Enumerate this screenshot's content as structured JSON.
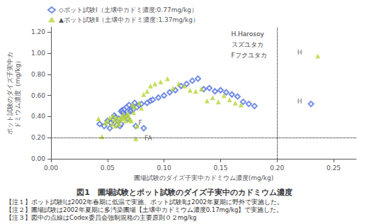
{
  "chart_data": {
    "type": "scatter",
    "title": "図1　圃場試験とポット試験のダイズ子実中のカドミウム濃度",
    "xlabel": "圃場試験のダイズ子実中カドミウム濃度(mg/kg)",
    "ylabel": "ポット試験のダイズ子実中カドミウム濃度（mg/kg）",
    "xlim": [
      0.0,
      0.27
    ],
    "ylim": [
      0.0,
      1.25
    ],
    "xticks": [
      {
        "value": 0.0,
        "label": "0.00"
      },
      0.05,
      {
        "value": 0.1,
        "label": "0.10"
      },
      0.15,
      {
        "value": 0.2,
        "label": "0.20"
      },
      0.25
    ],
    "yticks": [
      {
        "value": 0.0,
        "label": "0.00"
      },
      {
        "value": 0.2,
        "label": "0.20"
      },
      {
        "value": 0.4,
        "label": "0.40"
      },
      {
        "value": 0.6,
        "label": "0.60"
      },
      {
        "value": 0.8,
        "label": "0.80"
      },
      {
        "value": 1.0,
        "label": "1.00"
      },
      {
        "value": 1.2,
        "label": "1.20"
      }
    ],
    "grid": false,
    "legend": "upper left",
    "series": [
      {
        "name": "◇ポット試験Ⅰ（土壌中カドミ濃度:0.77mg/kg）",
        "marker": "open_diamond",
        "x": [
          0.043,
          0.047,
          0.05,
          0.052,
          0.053,
          0.055,
          0.056,
          0.057,
          0.058,
          0.059,
          0.06,
          0.061,
          0.062,
          0.062,
          0.063,
          0.064,
          0.065,
          0.065,
          0.066,
          0.067,
          0.068,
          0.069,
          0.07,
          0.071,
          0.072,
          0.073,
          0.074,
          0.075,
          0.076,
          0.078,
          0.08,
          0.082,
          0.085,
          0.088,
          0.09,
          0.095,
          0.1,
          0.105,
          0.11,
          0.115,
          0.12,
          0.125,
          0.13,
          0.135,
          0.14,
          0.145,
          0.15,
          0.155,
          0.16,
          0.165,
          0.17,
          0.175,
          0.18,
          0.23
        ],
        "values": [
          0.33,
          0.31,
          0.36,
          0.29,
          0.34,
          0.37,
          0.41,
          0.39,
          0.32,
          0.36,
          0.38,
          0.31,
          0.45,
          0.33,
          0.46,
          0.44,
          0.42,
          0.47,
          0.4,
          0.49,
          0.38,
          0.51,
          0.45,
          0.46,
          0.48,
          0.47,
          0.53,
          0.31,
          0.49,
          0.51,
          0.52,
          0.29,
          0.53,
          0.55,
          0.56,
          0.58,
          0.6,
          0.63,
          0.65,
          0.69,
          0.71,
          0.74,
          0.76,
          0.66,
          0.67,
          0.64,
          0.65,
          0.63,
          0.61,
          0.59,
          0.54,
          0.52,
          0.5,
          0.52
        ]
      },
      {
        "name": "▲ポット試験Ⅱ（土壌中カドミ濃度:1.37mg/kg）",
        "marker": "triangle",
        "x": [
          0.042,
          0.045,
          0.048,
          0.05,
          0.052,
          0.054,
          0.055,
          0.056,
          0.057,
          0.058,
          0.059,
          0.06,
          0.061,
          0.062,
          0.063,
          0.064,
          0.065,
          0.066,
          0.067,
          0.068,
          0.069,
          0.07,
          0.071,
          0.072,
          0.073,
          0.074,
          0.075,
          0.076,
          0.078,
          0.08,
          0.082,
          0.085,
          0.088,
          0.092,
          0.097,
          0.103,
          0.108,
          0.113,
          0.118,
          0.123,
          0.128,
          0.133,
          0.138,
          0.143,
          0.148,
          0.153,
          0.158,
          0.163,
          0.168,
          0.236
        ],
        "values": [
          0.38,
          0.21,
          0.34,
          0.36,
          0.39,
          0.33,
          0.41,
          0.37,
          0.31,
          0.39,
          0.35,
          0.33,
          0.37,
          0.4,
          0.38,
          0.42,
          0.39,
          0.36,
          0.41,
          0.43,
          0.39,
          0.37,
          0.36,
          0.51,
          0.44,
          0.49,
          0.19,
          0.31,
          0.53,
          0.48,
          0.61,
          0.64,
          0.69,
          0.71,
          0.73,
          0.76,
          0.67,
          0.71,
          0.69,
          0.65,
          0.64,
          0.66,
          0.55,
          0.58,
          0.54,
          0.6,
          0.56,
          0.53,
          0.51,
          0.975
        ]
      }
    ],
    "annotations": [
      {
        "text": "H",
        "x": 0.22,
        "y": 1.005
      },
      {
        "text": "H",
        "x": 0.22,
        "y": 0.545
      },
      {
        "text": "F",
        "x": 0.079,
        "y": 0.345
      },
      {
        "text": "FA",
        "x": 0.086,
        "y": 0.192
      }
    ],
    "reference_lines": [
      {
        "axis": "y",
        "value": 0.2,
        "line_style": "dotted",
        "color": "#000000"
      },
      {
        "axis": "x",
        "value": 0.2,
        "line_style": "dotted",
        "color": "#000000"
      }
    ],
    "notes": [
      "H.Harosoy",
      "スズユタカ",
      "Fフクユタカ"
    ],
    "footnotes": [
      "【注１】ポット試験Ⅰは2002年春期に低温で実施、ポット試験Ⅱは2002年夏期に野外で実施した。",
      "【注２】圃場試験は2002年夏期に多汚染圃場【土壌中カドミウム濃度0.17mg/kg】で実施した。",
      "【注３】図中の点線はCodex委員会強制規格の主要原則０２mg/kg"
    ]
  }
}
